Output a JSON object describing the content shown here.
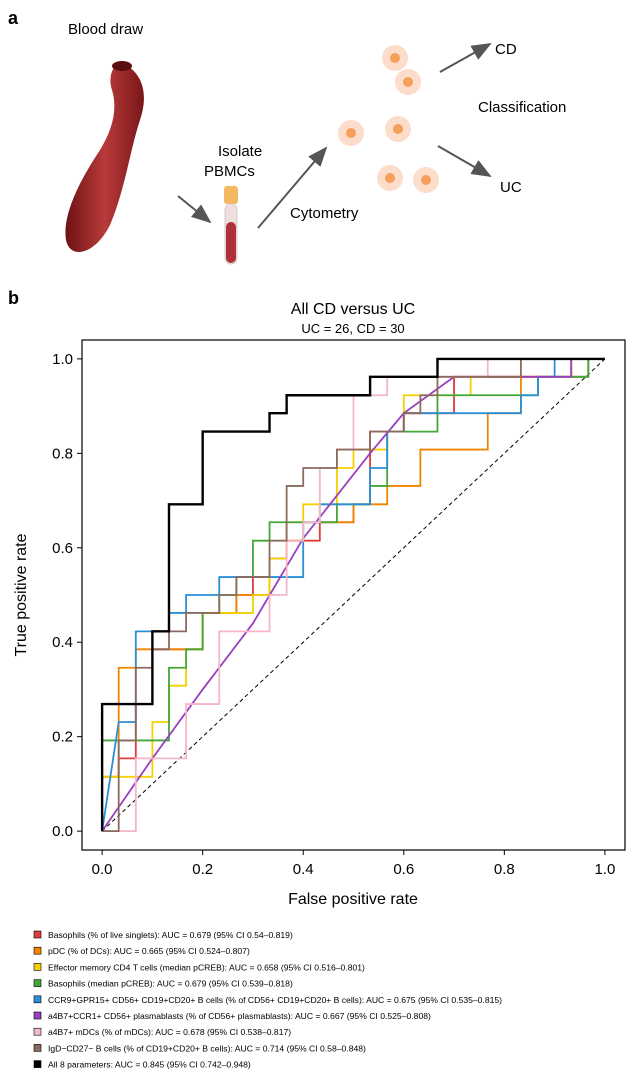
{
  "panel_labels": [
    "a",
    "b"
  ],
  "diagram": {
    "labels": {
      "blood": "Blood draw",
      "isolate": "Isolate",
      "pbmcs": "PBMCs",
      "cytometry": "Cytometry",
      "cd": "CD",
      "classification": "Classification",
      "uc": "UC"
    }
  },
  "chart_data": {
    "type": "line",
    "title": "All CD versus UC",
    "subtitle": "UC = 26, CD = 30",
    "x_label": "False positive rate",
    "y_label": "True positive rate",
    "xlim": [
      -0.04,
      1.04
    ],
    "ylim": [
      -0.04,
      1.04
    ],
    "xticks": [
      {
        "value": 0,
        "label": "0.0"
      },
      0.2,
      0.4,
      0.6,
      0.8,
      {
        "value": 1,
        "label": "1.0"
      }
    ],
    "yticks": [
      {
        "value": 0,
        "label": "0.0"
      },
      0.2,
      0.4,
      0.6,
      0.8,
      {
        "value": 1,
        "label": "1.0"
      }
    ],
    "legend": "below",
    "reference_line": "dashed",
    "series": [
      {
        "name": "Basophils (% of live singlets): AUC = 0.679 (95% CI 0.54–0.819)",
        "color": "#e03b3b",
        "x": [
          0,
          0,
          0.033,
          0.033,
          0.067,
          0.067,
          0.1,
          0.1,
          0.2,
          0.2,
          0.267,
          0.267,
          0.3,
          0.3,
          0.333,
          0.333,
          0.367,
          0.367,
          0.433,
          0.433,
          0.5,
          0.5,
          0.533,
          0.533,
          0.6,
          0.6,
          0.7,
          0.7,
          0.967,
          0.967,
          1
        ],
        "values": [
          0,
          0.115,
          0.115,
          0.154,
          0.154,
          0.269,
          0.269,
          0.385,
          0.385,
          0.462,
          0.462,
          0.5,
          0.5,
          0.538,
          0.538,
          0.577,
          0.577,
          0.615,
          0.615,
          0.654,
          0.654,
          0.692,
          0.692,
          0.846,
          0.846,
          0.885,
          0.885,
          0.962,
          0.962,
          1,
          1
        ]
      },
      {
        "name": "pDC (% of DCs): AUC = 0.665 (95% CI 0.524–0.807)",
        "color": "#f28500",
        "x": [
          0,
          0,
          0.033,
          0.033,
          0.067,
          0.067,
          0.2,
          0.2,
          0.267,
          0.267,
          0.333,
          0.333,
          0.367,
          0.367,
          0.5,
          0.5,
          0.567,
          0.567,
          0.633,
          0.633,
          0.767,
          0.767,
          0.833,
          0.833,
          0.933,
          0.933,
          1
        ],
        "values": [
          0,
          0.115,
          0.115,
          0.346,
          0.346,
          0.385,
          0.385,
          0.462,
          0.462,
          0.5,
          0.5,
          0.577,
          0.577,
          0.654,
          0.654,
          0.692,
          0.692,
          0.731,
          0.731,
          0.808,
          0.808,
          0.885,
          0.885,
          0.962,
          0.962,
          1,
          1
        ]
      },
      {
        "name": "Effector memory CD4 T cells (median pCREB): AUC = 0.658 (95% CI 0.516–0.801)",
        "color": "#f5d000",
        "x": [
          0,
          0,
          0.1,
          0.1,
          0.133,
          0.133,
          0.167,
          0.167,
          0.2,
          0.2,
          0.3,
          0.3,
          0.333,
          0.333,
          0.367,
          0.367,
          0.4,
          0.4,
          0.467,
          0.467,
          0.5,
          0.5,
          0.567,
          0.567,
          0.6,
          0.6,
          0.733,
          0.733,
          0.933,
          0.933,
          1
        ],
        "values": [
          0,
          0.115,
          0.115,
          0.231,
          0.231,
          0.308,
          0.308,
          0.385,
          0.385,
          0.462,
          0.462,
          0.5,
          0.5,
          0.577,
          0.577,
          0.615,
          0.615,
          0.692,
          0.692,
          0.769,
          0.769,
          0.808,
          0.808,
          0.846,
          0.846,
          0.923,
          0.923,
          0.962,
          0.962,
          1,
          1
        ]
      },
      {
        "name": "Basophils (median pCREB): AUC = 0.679 (95% CI 0.539–0.818)",
        "color": "#43a838",
        "x": [
          0,
          0,
          0.133,
          0.133,
          0.167,
          0.167,
          0.2,
          0.2,
          0.233,
          0.233,
          0.267,
          0.267,
          0.3,
          0.3,
          0.333,
          0.333,
          0.467,
          0.467,
          0.533,
          0.533,
          0.567,
          0.567,
          0.667,
          0.667,
          0.867,
          0.867,
          0.967,
          0.967,
          1
        ],
        "values": [
          0,
          0.192,
          0.192,
          0.346,
          0.346,
          0.385,
          0.385,
          0.462,
          0.462,
          0.5,
          0.5,
          0.538,
          0.538,
          0.615,
          0.615,
          0.654,
          0.654,
          0.692,
          0.692,
          0.731,
          0.731,
          0.846,
          0.846,
          0.923,
          0.923,
          0.962,
          0.962,
          1,
          1
        ]
      },
      {
        "name": "CCR9+GPR15+ CD56+ CD19+CD20+ B cells (% of CD56+ CD19+CD20+ B cells): AUC = 0.675 (95% CI 0.535–0.815)",
        "color": "#2a8fd8",
        "x": [
          0,
          0.033,
          0.067,
          0.067,
          0.133,
          0.133,
          0.167,
          0.167,
          0.233,
          0.233,
          0.4,
          0.4,
          0.433,
          0.433,
          0.533,
          0.533,
          0.567,
          0.567,
          0.6,
          0.6,
          0.833,
          0.833,
          0.867,
          0.867,
          0.9,
          0.9,
          1
        ],
        "values": [
          0,
          0.231,
          0.231,
          0.423,
          0.423,
          0.462,
          0.462,
          0.5,
          0.5,
          0.538,
          0.538,
          0.654,
          0.654,
          0.692,
          0.692,
          0.769,
          0.769,
          0.846,
          0.846,
          0.885,
          0.885,
          0.923,
          0.923,
          0.962,
          0.962,
          1,
          1
        ]
      },
      {
        "name": "a4B7+CCR1+ CD56+ plasmablasts (% of CD56+ plasmablasts): AUC = 0.667 (95% CI 0.525–0.808)",
        "color": "#9a3fc0",
        "x": [
          0,
          0.1,
          0.2,
          0.3,
          0.4,
          0.533,
          0.6,
          0.7,
          0.933,
          0.933,
          1
        ],
        "values": [
          0,
          0.154,
          0.3,
          0.44,
          0.62,
          0.8,
          0.885,
          0.962,
          0.962,
          1,
          1
        ]
      },
      {
        "name": "a4B7+ mDCs (% of mDCs): AUC = 0.678 (95% CI 0.538–0.817)",
        "color": "#f4b6c9",
        "x": [
          0,
          0.067,
          0.067,
          0.167,
          0.167,
          0.233,
          0.233,
          0.333,
          0.333,
          0.367,
          0.367,
          0.4,
          0.4,
          0.433,
          0.433,
          0.467,
          0.467,
          0.5,
          0.5,
          0.567,
          0.567,
          0.767,
          0.767,
          1
        ],
        "values": [
          0,
          0,
          0.154,
          0.154,
          0.269,
          0.269,
          0.423,
          0.423,
          0.5,
          0.5,
          0.615,
          0.615,
          0.654,
          0.654,
          0.769,
          0.769,
          0.808,
          0.808,
          0.923,
          0.923,
          0.962,
          0.962,
          1,
          1
        ]
      },
      {
        "name": "IgD−CD27− B cells (% of CD19+CD20+ B cells): AUC = 0.714 (95% CI 0.58–0.848)",
        "color": "#8c6b5f",
        "x": [
          0,
          0.033,
          0.033,
          0.067,
          0.067,
          0.1,
          0.1,
          0.133,
          0.133,
          0.167,
          0.167,
          0.233,
          0.233,
          0.267,
          0.267,
          0.333,
          0.333,
          0.367,
          0.367,
          0.4,
          0.4,
          0.467,
          0.467,
          0.533,
          0.533,
          0.6,
          0.6,
          0.633,
          0.633,
          0.667,
          0.667,
          0.833,
          0.833,
          1
        ],
        "values": [
          0,
          0,
          0.192,
          0.192,
          0.346,
          0.346,
          0.385,
          0.385,
          0.423,
          0.423,
          0.462,
          0.462,
          0.5,
          0.5,
          0.538,
          0.538,
          0.615,
          0.615,
          0.731,
          0.731,
          0.769,
          0.769,
          0.808,
          0.808,
          0.846,
          0.846,
          0.885,
          0.885,
          0.923,
          0.923,
          0.962,
          0.962,
          1,
          1
        ]
      },
      {
        "name": "All 8 parameters: AUC = 0.845 (95% CI 0.742–0.948)",
        "color": "#000000",
        "x": [
          0,
          0,
          0.1,
          0.1,
          0.133,
          0.133,
          0.2,
          0.2,
          0.333,
          0.333,
          0.367,
          0.367,
          0.533,
          0.533,
          0.667,
          0.667,
          1
        ],
        "values": [
          0,
          0.269,
          0.269,
          0.423,
          0.423,
          0.692,
          0.692,
          0.846,
          0.846,
          0.885,
          0.885,
          0.923,
          0.923,
          0.962,
          0.962,
          1,
          1
        ]
      }
    ]
  }
}
